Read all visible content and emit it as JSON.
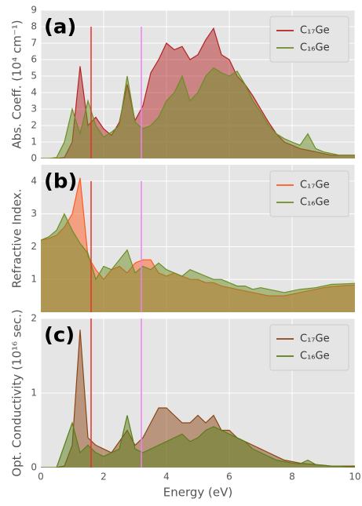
{
  "chart_data": [
    {
      "type": "area",
      "label": "(a)",
      "ylabel": "Abs. Coeff. (10⁴ cm⁻¹)",
      "x": [
        0,
        0.25,
        0.5,
        0.75,
        1,
        1.25,
        1.5,
        1.75,
        2,
        2.25,
        2.5,
        2.75,
        3,
        3.25,
        3.5,
        3.75,
        4,
        4.25,
        4.5,
        4.75,
        5,
        5.25,
        5.5,
        5.75,
        6,
        6.25,
        6.5,
        6.75,
        7,
        7.25,
        7.5,
        7.75,
        8,
        8.25,
        8.5,
        8.75,
        9,
        9.25,
        9.5,
        9.75,
        10
      ],
      "series": [
        {
          "name": "C₁₇Ge",
          "color": "#b22222",
          "values": [
            0,
            0,
            0,
            0.05,
            1.0,
            5.6,
            2.0,
            2.5,
            1.8,
            1.4,
            2.2,
            4.5,
            2.3,
            3.2,
            5.2,
            6.0,
            7.0,
            6.6,
            6.8,
            6.0,
            6.3,
            7.2,
            7.9,
            6.3,
            6.0,
            5.0,
            4.5,
            3.8,
            3.0,
            2.2,
            1.5,
            1.0,
            0.8,
            0.6,
            0.5,
            0.4,
            0.3,
            0.2,
            0.2,
            0.2,
            0.2
          ]
        },
        {
          "name": "C₁₆Ge",
          "color": "#6b8e23",
          "values": [
            0,
            0,
            0.05,
            1.0,
            3.0,
            1.5,
            3.5,
            2.0,
            1.3,
            1.6,
            2.0,
            5.0,
            2.2,
            1.8,
            2.0,
            2.5,
            3.5,
            4.0,
            5.0,
            3.5,
            4.0,
            5.0,
            5.5,
            5.2,
            5.0,
            5.3,
            4.5,
            3.5,
            2.8,
            2.0,
            1.5,
            1.2,
            1.0,
            0.8,
            1.5,
            0.6,
            0.4,
            0.3,
            0.2,
            0.2,
            0.2
          ]
        }
      ],
      "vlines": [
        {
          "x": 1.6,
          "y": [
            0,
            8
          ],
          "color": "#e8302a"
        },
        {
          "x": 3.2,
          "y": [
            0,
            8
          ],
          "color": "#ee82ee"
        }
      ],
      "xlim": [
        0,
        10
      ],
      "xticks": [
        0,
        2,
        4,
        6,
        8,
        10
      ],
      "ylim": [
        0,
        9
      ],
      "yticks": [
        0,
        1,
        2,
        3,
        4,
        5,
        6,
        7,
        8,
        9
      ],
      "grid": true,
      "legend": "upper right"
    },
    {
      "type": "area",
      "label": "(b)",
      "ylabel": "Refractive Index.",
      "x": [
        0,
        0.25,
        0.5,
        0.75,
        1,
        1.25,
        1.5,
        1.75,
        2,
        2.25,
        2.5,
        2.75,
        3,
        3.25,
        3.5,
        3.75,
        4,
        4.25,
        4.5,
        4.75,
        5,
        5.25,
        5.5,
        5.75,
        6,
        6.25,
        6.5,
        6.75,
        7,
        7.25,
        7.5,
        7.75,
        8,
        8.25,
        8.5,
        8.75,
        9,
        9.25,
        9.5,
        9.75,
        10
      ],
      "series": [
        {
          "name": "C₁₇Ge",
          "color": "#ff5a1f",
          "values": [
            2.2,
            2.25,
            2.35,
            2.6,
            3.0,
            4.1,
            1.7,
            1.3,
            1.0,
            1.3,
            1.4,
            1.2,
            1.5,
            1.6,
            1.6,
            1.2,
            1.1,
            1.2,
            1.1,
            1.0,
            1.0,
            0.9,
            0.9,
            0.8,
            0.75,
            0.7,
            0.65,
            0.6,
            0.55,
            0.5,
            0.5,
            0.5,
            0.55,
            0.6,
            0.65,
            0.7,
            0.75,
            0.78,
            0.8,
            0.82,
            0.83
          ]
        },
        {
          "name": "C₁₆Ge",
          "color": "#6b8e23",
          "values": [
            2.2,
            2.3,
            2.5,
            3.0,
            2.5,
            2.1,
            1.8,
            1.0,
            1.4,
            1.3,
            1.6,
            1.9,
            1.2,
            1.4,
            1.3,
            1.5,
            1.3,
            1.2,
            1.1,
            1.3,
            1.2,
            1.1,
            1.0,
            1.0,
            0.9,
            0.8,
            0.8,
            0.7,
            0.75,
            0.7,
            0.65,
            0.6,
            0.65,
            0.7,
            0.72,
            0.75,
            0.8,
            0.85,
            0.86,
            0.87,
            0.88
          ]
        }
      ],
      "vlines": [
        {
          "x": 1.6,
          "y": [
            0,
            4
          ],
          "color": "#e8302a"
        },
        {
          "x": 3.2,
          "y": [
            0,
            4
          ],
          "color": "#ee82ee"
        }
      ],
      "xlim": [
        0,
        10
      ],
      "xticks": [
        0,
        2,
        4,
        6,
        8,
        10
      ],
      "ylim": [
        0,
        4.5
      ],
      "yticks": [
        1,
        2,
        3,
        4
      ],
      "grid": true,
      "legend": "upper right"
    },
    {
      "type": "area",
      "label": "(c)",
      "ylabel": "Opt. Conductivity (10¹⁶ sec.)",
      "xlabel": "Energy (eV)",
      "x": [
        0,
        0.25,
        0.5,
        0.75,
        1,
        1.25,
        1.5,
        1.75,
        2,
        2.25,
        2.5,
        2.75,
        3,
        3.25,
        3.5,
        3.75,
        4,
        4.25,
        4.5,
        4.75,
        5,
        5.25,
        5.5,
        5.75,
        6,
        6.25,
        6.5,
        6.75,
        7,
        7.25,
        7.5,
        7.75,
        8,
        8.25,
        8.5,
        8.75,
        9,
        9.25,
        9.5,
        9.75,
        10
      ],
      "series": [
        {
          "name": "C₁₇Ge",
          "color": "#8b4513",
          "values": [
            0,
            0,
            0,
            0.02,
            0.3,
            1.85,
            0.4,
            0.3,
            0.25,
            0.2,
            0.35,
            0.5,
            0.3,
            0.4,
            0.6,
            0.8,
            0.8,
            0.7,
            0.6,
            0.6,
            0.7,
            0.6,
            0.7,
            0.5,
            0.5,
            0.4,
            0.35,
            0.3,
            0.25,
            0.2,
            0.15,
            0.1,
            0.08,
            0.06,
            0.05,
            0.04,
            0.03,
            0.02,
            0.02,
            0.02,
            0.02
          ]
        },
        {
          "name": "C₁₆Ge",
          "color": "#5a7d1a",
          "values": [
            0,
            0,
            0,
            0.3,
            0.6,
            0.2,
            0.3,
            0.2,
            0.15,
            0.2,
            0.25,
            0.7,
            0.25,
            0.2,
            0.25,
            0.3,
            0.35,
            0.4,
            0.45,
            0.35,
            0.4,
            0.5,
            0.55,
            0.5,
            0.45,
            0.4,
            0.35,
            0.25,
            0.2,
            0.15,
            0.1,
            0.08,
            0.06,
            0.05,
            0.1,
            0.04,
            0.03,
            0.02,
            0.02,
            0.01,
            0.01
          ]
        }
      ],
      "vlines": [
        {
          "x": 1.6,
          "y": [
            0,
            2
          ],
          "color": "#e8302a"
        },
        {
          "x": 3.2,
          "y": [
            0,
            2
          ],
          "color": "#ee82ee"
        }
      ],
      "xlim": [
        0,
        10
      ],
      "xticks": [
        0,
        2,
        4,
        6,
        8,
        10
      ],
      "ylim": [
        0,
        2
      ],
      "yticks": [
        0,
        1,
        2
      ],
      "grid": true,
      "legend": "upper right"
    }
  ]
}
